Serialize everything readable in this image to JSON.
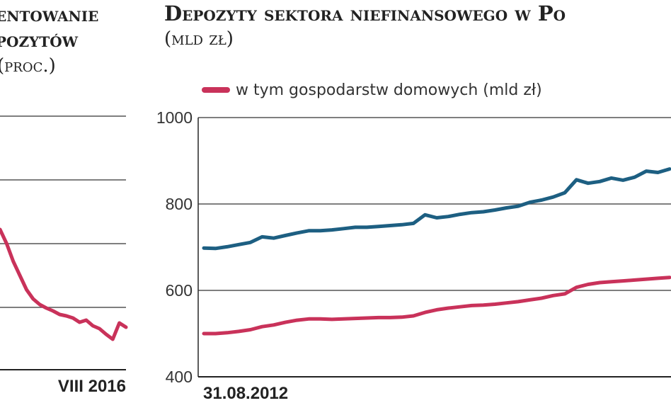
{
  "left_panel": {
    "title_lines": [
      "entowanie",
      "pozytów",
      "(proc.)"
    ]
  },
  "chart_data": [
    {
      "type": "line",
      "title_lines": [
        "entowanie",
        "pozytów"
      ],
      "subtitle": "(proc.)",
      "x_label": "VIII 2016",
      "grid": true,
      "series": [
        {
          "color": "#c9325a",
          "values": [
            3.1,
            2.9,
            2.65,
            2.45,
            2.25,
            2.12,
            2.04,
            1.99,
            1.95,
            1.9,
            1.88,
            1.85,
            1.79,
            1.82,
            1.74,
            1.7,
            1.62,
            1.55,
            1.78,
            1.72
          ]
        }
      ]
    },
    {
      "type": "line",
      "title": "Depozyty sektora niefinansowego w Po",
      "subtitle": "(mld zł)",
      "legend": "w tym gospodarstw domowych (mld zł)",
      "legend_placement": "top-left",
      "x_start_label": "31.08.2012",
      "ylim": [
        400,
        1000
      ],
      "yticks": [
        "1000",
        "800",
        "600",
        "400"
      ],
      "grid": true,
      "series": [
        {
          "color": "#1d5f82",
          "values": [
            698,
            697,
            701,
            706,
            711,
            724,
            721,
            727,
            733,
            738,
            738,
            740,
            743,
            746,
            746,
            748,
            750,
            752,
            755,
            775,
            768,
            771,
            776,
            780,
            782,
            786,
            791,
            795,
            804,
            809,
            816,
            826,
            856,
            848,
            852,
            860,
            855,
            862,
            876,
            873,
            881
          ]
        },
        {
          "name": "w tym gospodarstw domowych (mld zł)",
          "color": "#c9325a",
          "values": [
            500,
            500,
            502,
            505,
            509,
            516,
            520,
            526,
            531,
            534,
            534,
            533,
            534,
            535,
            536,
            537,
            537,
            538,
            541,
            549,
            555,
            559,
            562,
            565,
            566,
            568,
            571,
            574,
            578,
            582,
            588,
            592,
            607,
            614,
            618,
            620,
            622,
            624,
            626,
            628,
            630
          ]
        }
      ]
    }
  ]
}
